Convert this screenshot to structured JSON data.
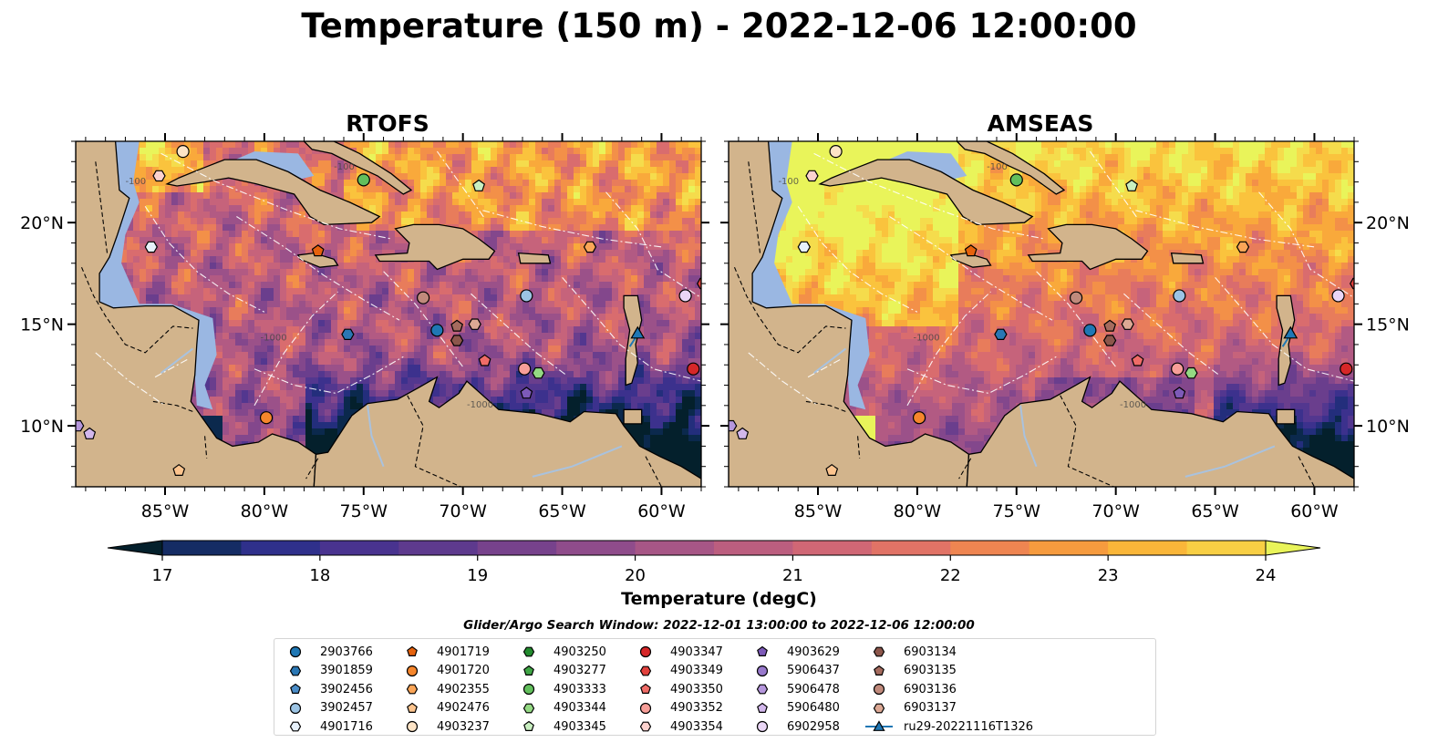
{
  "title": "Temperature (150 m) - 2022-12-06 12:00:00",
  "panels": [
    {
      "title": "RTOFS",
      "model": "rtofs"
    },
    {
      "title": "AMSEAS",
      "model": "amseas"
    }
  ],
  "map": {
    "lon_range": [
      -89.5,
      -58.0
    ],
    "lat_range": [
      7.0,
      24.0
    ],
    "lon_ticks": [
      "85°W",
      "80°W",
      "75°W",
      "70°W",
      "65°W",
      "60°W"
    ],
    "lat_ticks": [
      "20°N",
      "15°N",
      "10°N"
    ],
    "contour_labels": [
      "-1000",
      "-100"
    ],
    "colors": {
      "land": "#d2b48c",
      "shelf_water": "#9ab7e2",
      "eez": "#ffffff",
      "border": "#000000"
    }
  },
  "colorbar": {
    "label": "Temperature (degC)",
    "min": 16.5,
    "max": 24.5,
    "step": 0.5,
    "ticks": [
      "17",
      "18",
      "19",
      "20",
      "21",
      "22",
      "23",
      "24"
    ],
    "colormap": "thermal",
    "extend": "both"
  },
  "search_window": "Glider/Argo Search Window: 2022-12-01 13:00:00 to 2022-12-06 12:00:00",
  "legend_items": [
    {
      "id": "2903766",
      "marker": "circle",
      "color": "#1f77b4"
    },
    {
      "id": "3901859",
      "marker": "hexagon",
      "color": "#2a77b4"
    },
    {
      "id": "3902456",
      "marker": "pentagon",
      "color": "#4b8dc8"
    },
    {
      "id": "3902457",
      "marker": "circle",
      "color": "#9cc4e4"
    },
    {
      "id": "4901716",
      "marker": "hexagon",
      "color": "#e7f1fb"
    },
    {
      "id": "4901719",
      "marker": "pentagon",
      "color": "#e6620d"
    },
    {
      "id": "4901720",
      "marker": "circle",
      "color": "#f6862c"
    },
    {
      "id": "4902355",
      "marker": "hexagon",
      "color": "#fba557"
    },
    {
      "id": "4902476",
      "marker": "pentagon",
      "color": "#fdc48e"
    },
    {
      "id": "4903237",
      "marker": "circle",
      "color": "#fde4c6"
    },
    {
      "id": "4903250",
      "marker": "hexagon",
      "color": "#238b2e"
    },
    {
      "id": "4903277",
      "marker": "pentagon",
      "color": "#3fa545"
    },
    {
      "id": "4903333",
      "marker": "circle",
      "color": "#62bf5c"
    },
    {
      "id": "4903344",
      "marker": "hexagon",
      "color": "#94d983"
    },
    {
      "id": "4903345",
      "marker": "pentagon",
      "color": "#c9efc1"
    },
    {
      "id": "4903347",
      "marker": "circle",
      "color": "#d62728"
    },
    {
      "id": "4903349",
      "marker": "hexagon",
      "color": "#e2413d"
    },
    {
      "id": "4903350",
      "marker": "pentagon",
      "color": "#f06c67"
    },
    {
      "id": "4903352",
      "marker": "circle",
      "color": "#f79e98"
    },
    {
      "id": "4903354",
      "marker": "hexagon",
      "color": "#fcd2ce"
    },
    {
      "id": "4903629",
      "marker": "pentagon",
      "color": "#7d5ab8"
    },
    {
      "id": "5906437",
      "marker": "circle",
      "color": "#9879cc"
    },
    {
      "id": "5906478",
      "marker": "hexagon",
      "color": "#b596dc"
    },
    {
      "id": "5906480",
      "marker": "pentagon",
      "color": "#d2b7ec"
    },
    {
      "id": "6902958",
      "marker": "circle",
      "color": "#ead6f6"
    },
    {
      "id": "6903134",
      "marker": "hexagon",
      "color": "#8c564b"
    },
    {
      "id": "6903135",
      "marker": "pentagon",
      "color": "#a56b5e"
    },
    {
      "id": "6903136",
      "marker": "circle",
      "color": "#c08a7c"
    },
    {
      "id": "6903137",
      "marker": "hexagon",
      "color": "#dca894"
    },
    {
      "id": "ru29-20221116T1326",
      "marker": "triangle",
      "color": "#1f77b4"
    }
  ],
  "platforms": [
    {
      "id": "2903766",
      "lon": -71.3,
      "lat": 14.7
    },
    {
      "id": "3901859",
      "lon": -75.8,
      "lat": 14.5
    },
    {
      "id": "3902457",
      "lon": -66.8,
      "lat": 16.4
    },
    {
      "id": "4901716",
      "lon": -85.7,
      "lat": 18.8
    },
    {
      "id": "4901719",
      "lon": -77.3,
      "lat": 18.6
    },
    {
      "id": "4902355",
      "lon": -63.6,
      "lat": 18.8
    },
    {
      "id": "4903237",
      "lon": -84.1,
      "lat": 23.5
    },
    {
      "id": "4902476",
      "lon": -84.3,
      "lat": 7.8
    },
    {
      "id": "4901720",
      "lon": -79.9,
      "lat": 10.4
    },
    {
      "id": "4903333",
      "lon": -75.0,
      "lat": 22.1
    },
    {
      "id": "4903345",
      "lon": -69.2,
      "lat": 21.8
    },
    {
      "id": "4903344",
      "lon": -66.2,
      "lat": 12.6
    },
    {
      "id": "4903350",
      "lon": -68.9,
      "lat": 13.2
    },
    {
      "id": "4903347",
      "lon": -58.4,
      "lat": 12.8
    },
    {
      "id": "4903354",
      "lon": -85.3,
      "lat": 22.3
    },
    {
      "id": "4903629",
      "lon": -66.8,
      "lat": 11.6
    },
    {
      "id": "5906478",
      "lon": -89.4,
      "lat": 10.0
    },
    {
      "id": "5906480",
      "lon": -88.8,
      "lat": 9.6
    },
    {
      "id": "6902958",
      "lon": -58.8,
      "lat": 16.4
    },
    {
      "id": "6903134",
      "lon": -70.3,
      "lat": 14.2
    },
    {
      "id": "6903135",
      "lon": -70.3,
      "lat": 14.9
    },
    {
      "id": "6903136",
      "lon": -72.0,
      "lat": 16.3
    },
    {
      "id": "6903137",
      "lon": -69.4,
      "lat": 15.0
    },
    {
      "id": "4903352",
      "lon": -66.9,
      "lat": 12.8
    },
    {
      "id": "4903349",
      "lon": -57.9,
      "lat": 17.0
    },
    {
      "id": "ru29-20221116T1326",
      "lon": -61.2,
      "lat": 14.5
    }
  ]
}
